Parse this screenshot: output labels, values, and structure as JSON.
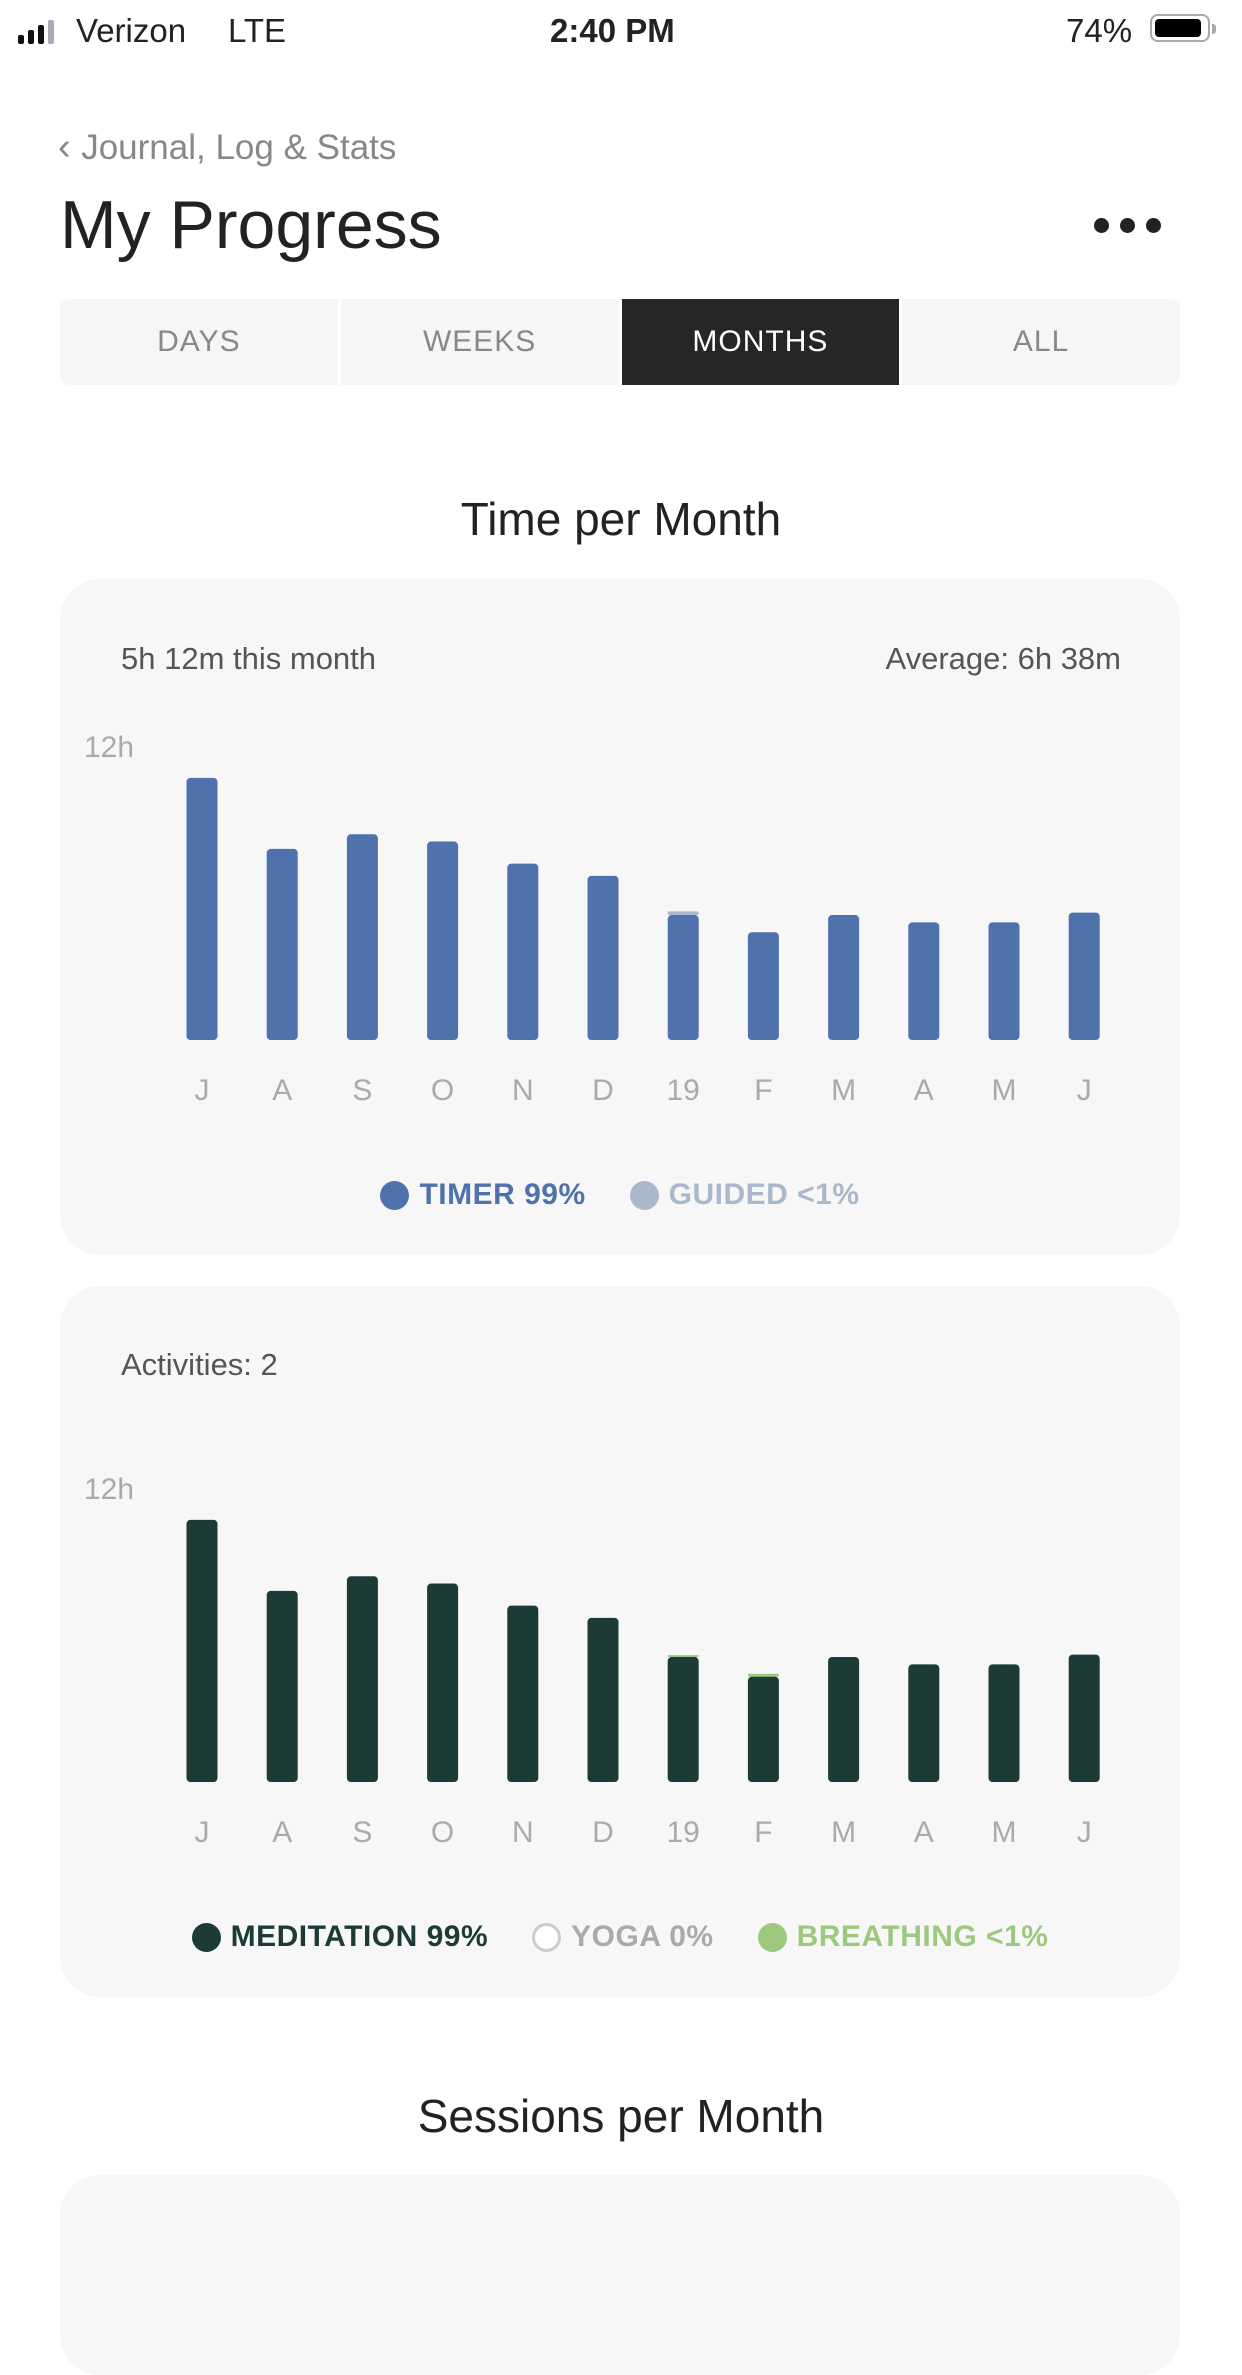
{
  "status_bar": {
    "carrier": "Verizon",
    "network": "LTE",
    "time": "2:40 PM",
    "battery": "74%",
    "battery_level": 0.74
  },
  "nav": {
    "back_label": "Journal, Log & Stats",
    "title": "My Progress",
    "more_icon": "ellipsis-icon"
  },
  "tabs": [
    {
      "label": "DAYS",
      "active": false
    },
    {
      "label": "WEEKS",
      "active": false
    },
    {
      "label": "MONTHS",
      "active": true
    },
    {
      "label": "ALL",
      "active": false
    }
  ],
  "section1": {
    "title": "Time per Month",
    "this_month": "5h 12m this month",
    "average": "Average:  6h 38m"
  },
  "section2": {
    "activities": "Activities: 2"
  },
  "section3": {
    "title": "Sessions per Month"
  },
  "chart_data": [
    {
      "type": "bar",
      "stacked": true,
      "ylabel_tick": "12h",
      "ylim": [
        0,
        12
      ],
      "categories": [
        "J",
        "A",
        "S",
        "O",
        "N",
        "D",
        "19",
        "F",
        "M",
        "A",
        "M",
        "J"
      ],
      "series": [
        {
          "name": "TIMER 99%",
          "color": "#4f72ad",
          "values": [
            10.7,
            7.8,
            8.4,
            8.1,
            7.2,
            6.7,
            5.1,
            4.4,
            5.1,
            4.8,
            4.8,
            5.2
          ]
        },
        {
          "name": "GUIDED <1%",
          "color": "#aab8cc",
          "values": [
            0,
            0,
            0,
            0,
            0,
            0,
            0.15,
            0,
            0,
            0,
            0,
            0
          ]
        }
      ]
    },
    {
      "type": "bar",
      "stacked": true,
      "ylabel_tick": "12h",
      "ylim": [
        0,
        12
      ],
      "categories": [
        "J",
        "A",
        "S",
        "O",
        "N",
        "D",
        "19",
        "F",
        "M",
        "A",
        "M",
        "J"
      ],
      "series": [
        {
          "name": "MEDITATION 99%",
          "color": "#1c3a36",
          "values": [
            10.7,
            7.8,
            8.4,
            8.1,
            7.2,
            6.7,
            5.1,
            4.3,
            5.1,
            4.8,
            4.8,
            5.2
          ]
        },
        {
          "name": "YOGA 0%",
          "color": "#ffffff",
          "values": [
            0,
            0,
            0,
            0,
            0,
            0,
            0,
            0,
            0,
            0,
            0,
            0
          ]
        },
        {
          "name": "BREATHING <1%",
          "color": "#9cc97f",
          "values": [
            0,
            0,
            0,
            0,
            0,
            0,
            0.08,
            0.12,
            0,
            0,
            0,
            0
          ]
        }
      ]
    }
  ]
}
